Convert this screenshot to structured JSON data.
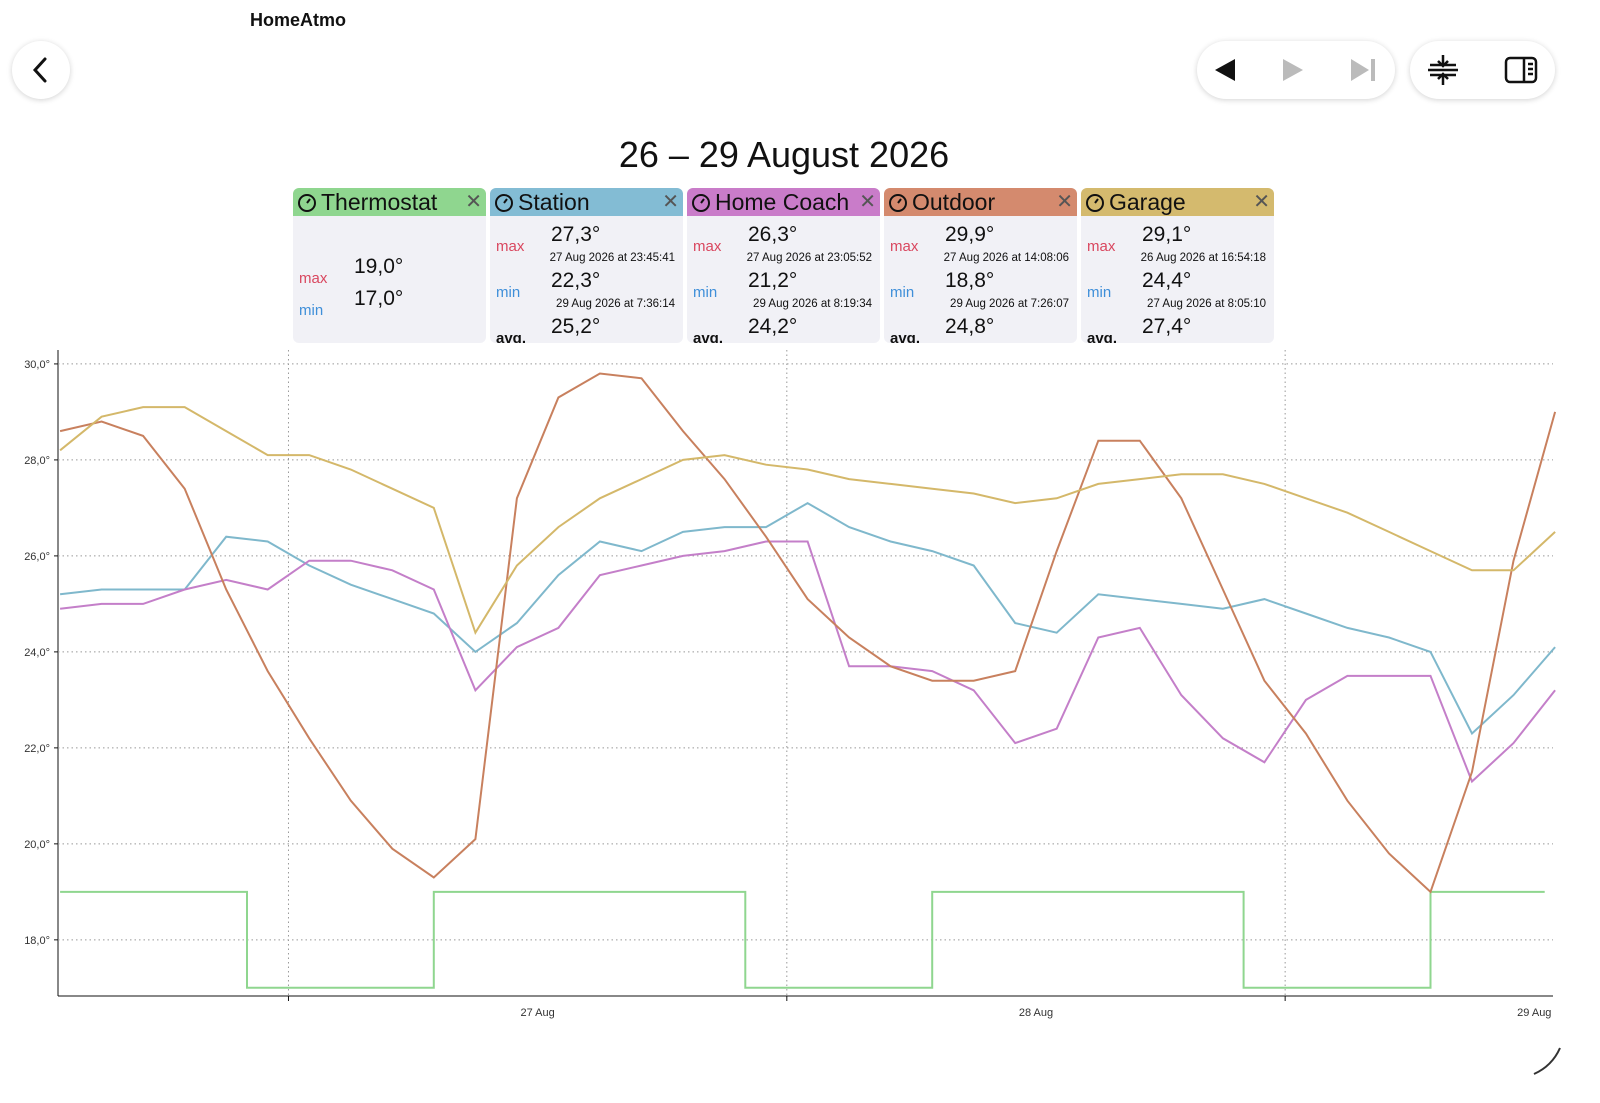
{
  "app_title": "HomeAtmo",
  "chart_data": {
    "type": "line",
    "title": "26 – 29 August 2026",
    "stat_labels": {
      "max": "max",
      "min": "min",
      "avg": "avg."
    },
    "x": [
      -11,
      -9,
      -7,
      -5,
      -3,
      -1,
      1,
      3,
      5,
      7,
      9,
      11,
      13,
      15,
      17,
      19,
      21,
      23,
      25,
      27,
      29,
      31,
      33,
      35,
      37,
      39,
      41,
      43,
      45,
      47,
      49,
      51,
      53,
      55,
      57,
      59,
      61
    ],
    "xlim": [
      -11.1,
      60.9
    ],
    "xgrid": [
      0,
      24,
      48
    ],
    "xticks": [
      {
        "value": 12,
        "label": "27 Aug"
      },
      {
        "value": 36,
        "label": "28 Aug"
      },
      {
        "value": 60,
        "label": "29 Aug"
      }
    ],
    "ylim": [
      16.83,
      30.29
    ],
    "yticks": [
      {
        "value": 18,
        "label": "18,0°"
      },
      {
        "value": 20,
        "label": "20,0°"
      },
      {
        "value": 22,
        "label": "22,0°"
      },
      {
        "value": 24,
        "label": "24,0°"
      },
      {
        "value": 26,
        "label": "26,0°"
      },
      {
        "value": 28,
        "label": "28,0°"
      },
      {
        "value": 30,
        "label": "30,0°"
      }
    ],
    "grid": true,
    "series": [
      {
        "name": "Thermostat",
        "color": "#8fd68f",
        "header_color": "#8fd68f",
        "x": [
          -11,
          -2,
          -2,
          7,
          7,
          22,
          22,
          31,
          31,
          46,
          46,
          55,
          55,
          60.5
        ],
        "values": [
          19,
          19,
          17,
          17,
          19,
          19,
          17,
          17,
          19,
          19,
          17,
          17,
          19,
          19
        ],
        "max": "19,0°",
        "min": "17,0°"
      },
      {
        "name": "Station",
        "color": "#7fb8cc",
        "header_color": "#83bcd4",
        "values": [
          25.2,
          25.3,
          25.3,
          25.3,
          26.4,
          26.3,
          25.8,
          25.4,
          25.1,
          24.8,
          24.0,
          24.6,
          25.6,
          26.3,
          26.1,
          26.5,
          26.6,
          26.6,
          27.1,
          26.6,
          26.3,
          26.1,
          25.8,
          24.6,
          24.4,
          25.2,
          25.1,
          25.0,
          24.9,
          25.1,
          24.8,
          24.5,
          24.3,
          24.0,
          22.3,
          23.1,
          24.1
        ],
        "max": "27,3°",
        "max_time": "27 Aug 2026 at 23:45:41",
        "min": "22,3°",
        "min_time": "29 Aug 2026 at 7:36:14",
        "avg": "25,2°"
      },
      {
        "name": "Home Coach",
        "color": "#c47fc9",
        "header_color": "#c97cc9",
        "values": [
          24.9,
          25.0,
          25.0,
          25.3,
          25.5,
          25.3,
          25.9,
          25.9,
          25.7,
          25.3,
          23.2,
          24.1,
          24.5,
          25.6,
          25.8,
          26.0,
          26.1,
          26.3,
          26.3,
          23.7,
          23.7,
          23.6,
          23.2,
          22.1,
          22.4,
          24.3,
          24.5,
          23.1,
          22.2,
          21.7,
          23.0,
          23.5,
          23.5,
          23.5,
          21.3,
          22.1,
          23.2
        ],
        "max": "26,3°",
        "max_time": "27 Aug 2026 at 23:05:52",
        "min": "21,2°",
        "min_time": "29 Aug 2026 at 8:19:34",
        "avg": "24,2°"
      },
      {
        "name": "Outdoor",
        "color": "#c8805e",
        "header_color": "#d48a6e",
        "values": [
          28.6,
          28.8,
          28.5,
          27.4,
          25.3,
          23.6,
          22.2,
          20.9,
          19.9,
          19.3,
          20.1,
          27.2,
          29.3,
          29.8,
          29.7,
          28.6,
          27.6,
          26.4,
          25.1,
          24.3,
          23.7,
          23.4,
          23.4,
          23.6,
          26.1,
          28.4,
          28.4,
          27.2,
          25.3,
          23.4,
          22.3,
          20.9,
          19.8,
          19.0,
          21.5,
          25.9,
          29.0
        ],
        "max": "29,9°",
        "max_time": "27 Aug 2026 at 14:08:06",
        "min": "18,8°",
        "min_time": "29 Aug 2026 at 7:26:07",
        "avg": "24,8°"
      },
      {
        "name": "Garage",
        "color": "#d4b86a",
        "header_color": "#d4ba6e",
        "values": [
          28.2,
          28.9,
          29.1,
          29.1,
          28.6,
          28.1,
          28.1,
          27.8,
          27.4,
          27.0,
          24.4,
          25.8,
          26.6,
          27.2,
          27.6,
          28.0,
          28.1,
          27.9,
          27.8,
          27.6,
          27.5,
          27.4,
          27.3,
          27.1,
          27.2,
          27.5,
          27.6,
          27.7,
          27.7,
          27.5,
          27.2,
          26.9,
          26.5,
          26.1,
          25.7,
          25.7,
          26.5
        ],
        "max": "29,1°",
        "max_time": "26 Aug 2026 at 16:54:18",
        "min": "24,4°",
        "min_time": "27 Aug 2026 at 8:05:10",
        "avg": "27,4°"
      }
    ]
  }
}
